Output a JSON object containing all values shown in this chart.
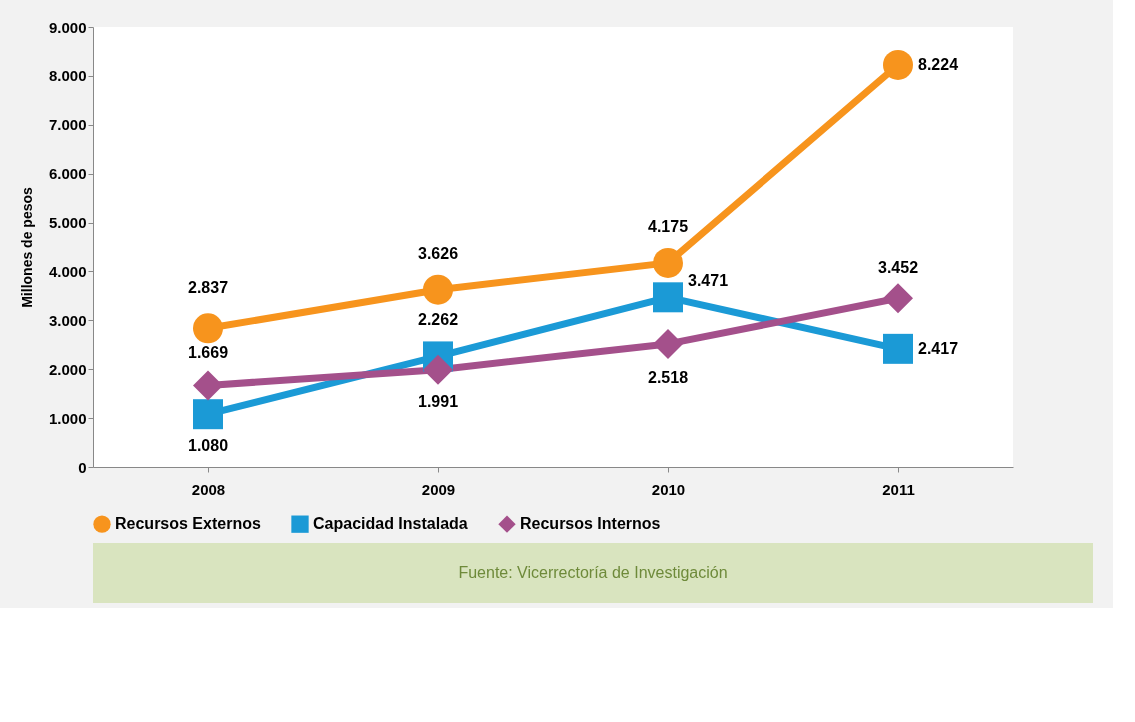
{
  "chart_data": {
    "type": "line",
    "ylabel": "Millones de pesos",
    "categories": [
      "2008",
      "2009",
      "2010",
      "2011"
    ],
    "series": [
      {
        "name": "Recursos Externos",
        "color": "#f7941d",
        "marker": "circle",
        "values": [
          2837,
          3626,
          4175,
          8224
        ],
        "value_labels": [
          "2.837",
          "3.626",
          "4.175",
          "8.224"
        ]
      },
      {
        "name": "Capacidad Instalada",
        "color": "#1b9ad6",
        "marker": "square",
        "values": [
          1080,
          2262,
          3471,
          2417
        ],
        "value_labels": [
          "1.080",
          "2.262",
          "3.471",
          "2.417"
        ]
      },
      {
        "name": "Recursos Internos",
        "color": "#a4508b",
        "marker": "diamond",
        "values": [
          1669,
          1991,
          2518,
          3452
        ],
        "value_labels": [
          "1.669",
          "1.991",
          "2.518",
          "3.452"
        ]
      }
    ],
    "ylim": [
      0,
      9000
    ],
    "yticks": [
      {
        "value": 0,
        "label": "0"
      },
      {
        "value": 1000,
        "label": "1.000"
      },
      {
        "value": 2000,
        "label": "2.000"
      },
      {
        "value": 3000,
        "label": "3.000"
      },
      {
        "value": 4000,
        "label": "4.000"
      },
      {
        "value": 5000,
        "label": "5.000"
      },
      {
        "value": 6000,
        "label": "6.000"
      },
      {
        "value": 7000,
        "label": "7.000"
      },
      {
        "value": 8000,
        "label": "8.000"
      },
      {
        "value": 9000,
        "label": "9.000"
      }
    ],
    "grid": false,
    "legend": "bottom",
    "line_style": "solid",
    "annotations": [
      "Fuente: Vicerrectoría de Investigación"
    ]
  }
}
